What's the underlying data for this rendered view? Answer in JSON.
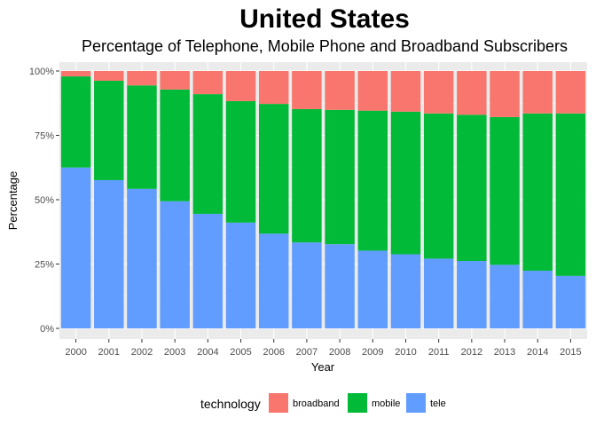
{
  "chart_data": {
    "type": "bar",
    "stacked": true,
    "title": "United States",
    "subtitle": "Percentage of Telephone, Mobile Phone and Broadband Subscribers",
    "xlabel": "Year",
    "ylabel": "Percentage",
    "ylim": [
      0,
      100
    ],
    "yticks": [
      "0%",
      "25%",
      "50%",
      "75%",
      "100%"
    ],
    "grid": true,
    "legend_position": "bottom",
    "legend_title": "technology",
    "categories": [
      "2000",
      "2001",
      "2002",
      "2003",
      "2004",
      "2005",
      "2006",
      "2007",
      "2008",
      "2009",
      "2010",
      "2011",
      "2012",
      "2013",
      "2014",
      "2015"
    ],
    "series": [
      {
        "name": "tele",
        "color": "#619CFF",
        "values": [
          62.5,
          57.6,
          54.2,
          49.4,
          44.5,
          41.1,
          36.8,
          33.4,
          32.7,
          30.2,
          28.8,
          27.1,
          26.2,
          24.7,
          22.4,
          20.4
        ]
      },
      {
        "name": "mobile",
        "color": "#00BA38",
        "values": [
          35.4,
          38.6,
          40.2,
          43.4,
          46.5,
          47.2,
          50.4,
          51.8,
          52.2,
          54.4,
          55.4,
          56.4,
          56.8,
          57.4,
          61.1,
          63.1
        ]
      },
      {
        "name": "broadband",
        "color": "#F8766D",
        "values": [
          2.1,
          3.8,
          5.6,
          7.2,
          9.0,
          11.7,
          12.8,
          14.8,
          15.1,
          15.4,
          15.8,
          16.5,
          17.0,
          17.9,
          16.5,
          16.5
        ]
      }
    ],
    "legend_order": [
      "broadband",
      "mobile",
      "tele"
    ]
  }
}
